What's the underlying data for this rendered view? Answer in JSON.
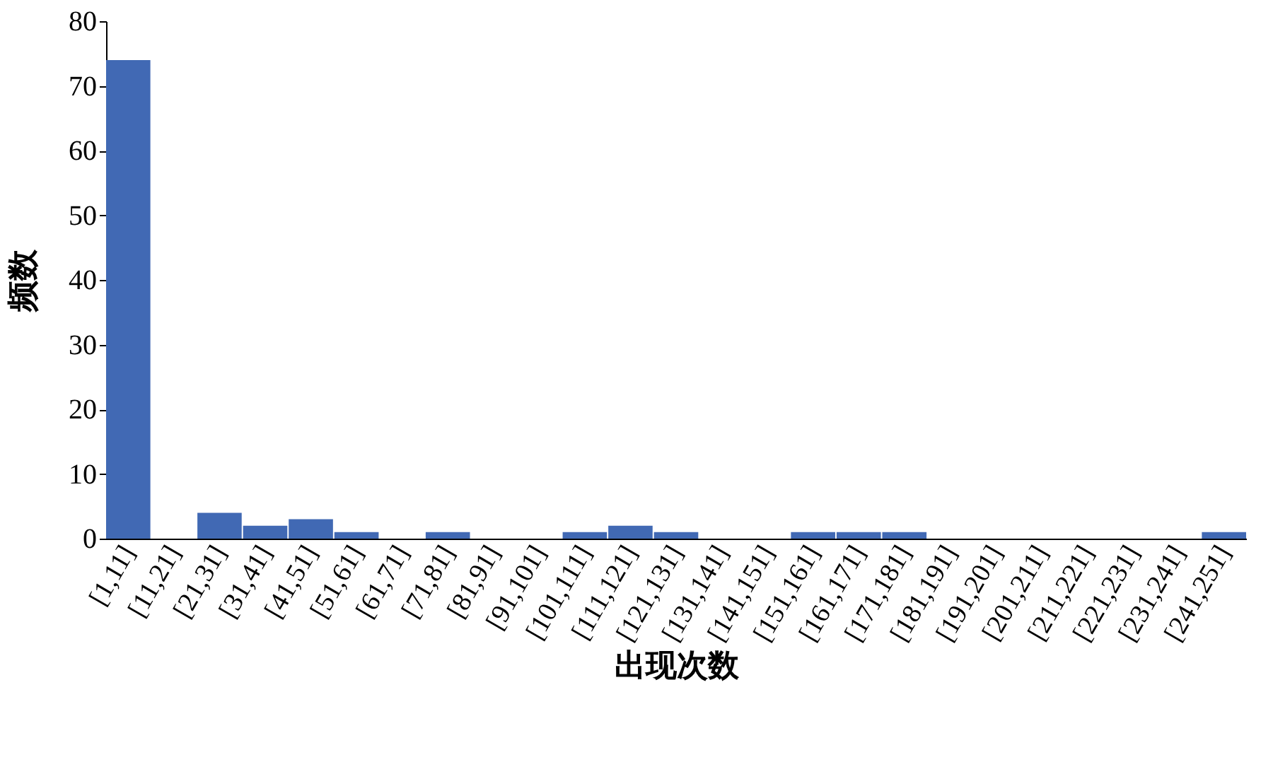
{
  "chart_data": {
    "type": "bar",
    "xlabel": "出现次数",
    "ylabel": "频数",
    "categories": [
      "[1,11]",
      "[11,21]",
      "[21,31]",
      "[31,41]",
      "[41,51]",
      "[51,61]",
      "[61,71]",
      "[71,81]",
      "[81,91]",
      "[91,101]",
      "[101,111]",
      "[111,121]",
      "[121,131]",
      "[131,141]",
      "[141,151]",
      "[151,161]",
      "[161,171]",
      "[171,181]",
      "[181,191]",
      "[191,201]",
      "[201,211]",
      "[211,221]",
      "[221,231]",
      "[231,241]",
      "[241,251]"
    ],
    "values": [
      74,
      0,
      4,
      2,
      3,
      1,
      0,
      1,
      0,
      0,
      1,
      2,
      1,
      0,
      0,
      1,
      1,
      1,
      0,
      0,
      0,
      0,
      0,
      0,
      1
    ],
    "color": "#4169b4",
    "ylim": [
      0,
      80
    ],
    "yticks": [
      0,
      10,
      20,
      30,
      40,
      50,
      60,
      70,
      80
    ],
    "grid": false
  }
}
